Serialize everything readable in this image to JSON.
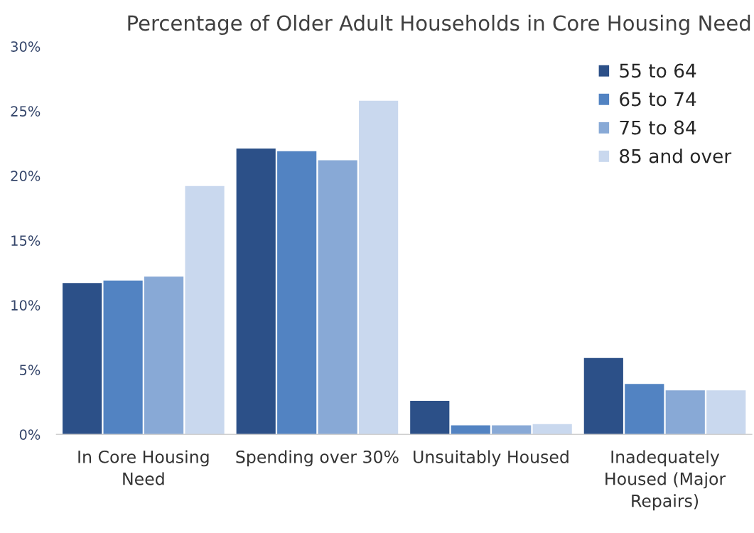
{
  "chart_data": {
    "type": "bar",
    "title": "Percentage of Older Adult Households in Core Housing Need",
    "categories": [
      "In Core Housing\nNeed",
      "Spending over 30%",
      "Unsuitably Housed",
      "Inadequately\nHoused (Major\nRepairs)"
    ],
    "series": [
      {
        "name": "55 to 64",
        "color": "#2c5088",
        "values": [
          11.7,
          22.1,
          2.6,
          5.9
        ]
      },
      {
        "name": "65 to 74",
        "color": "#5283c2",
        "values": [
          11.9,
          21.9,
          0.7,
          3.9
        ]
      },
      {
        "name": "75 to 84",
        "color": "#88a9d6",
        "values": [
          12.2,
          21.2,
          0.7,
          3.4
        ]
      },
      {
        "name": "85 and over",
        "color": "#c9d8ee",
        "values": [
          19.2,
          25.8,
          0.8,
          3.4
        ]
      }
    ],
    "ylim": [
      0,
      30
    ],
    "yticks": [
      {
        "value": 0,
        "label": "0%"
      },
      {
        "value": 5,
        "label": "5%"
      },
      {
        "value": 10,
        "label": "10%"
      },
      {
        "value": 15,
        "label": "15%"
      },
      {
        "value": 20,
        "label": "20%"
      },
      {
        "value": 25,
        "label": "25%"
      },
      {
        "value": 30,
        "label": "30%"
      }
    ],
    "legend": "top right"
  }
}
